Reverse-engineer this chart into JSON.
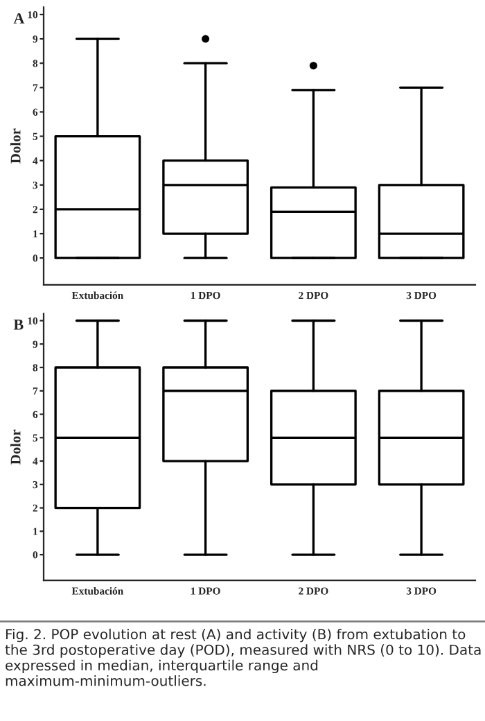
{
  "chart_data": [
    {
      "type": "box",
      "title": "A",
      "ylabel": "Dolor",
      "categories": [
        "Extubación",
        "1 DPO",
        "2 DPO",
        "3 DPO"
      ],
      "ylim": [
        -1.1,
        10.3
      ],
      "yticks": [
        0,
        1,
        2,
        3,
        4,
        5,
        6,
        7,
        8,
        9,
        10
      ],
      "grid": false,
      "boxes": [
        {
          "low": 0,
          "q1": 0,
          "median": 2,
          "q3": 5,
          "high": 9
        },
        {
          "low": 0,
          "q1": 1,
          "median": 3,
          "q3": 4,
          "high": 8,
          "outliers": [
            9
          ]
        },
        {
          "low": 0,
          "q1": 0,
          "median": 1.9,
          "q3": 2.9,
          "high": 6.9,
          "outliers": [
            7.9
          ]
        },
        {
          "low": 0,
          "q1": 0,
          "median": 1,
          "q3": 3,
          "high": 7
        }
      ]
    },
    {
      "type": "box",
      "title": "B",
      "ylabel": "Dolor",
      "categories": [
        "Extubación",
        "1 DPO",
        "2 DPO",
        "3 DPO"
      ],
      "ylim": [
        -1.1,
        10.3
      ],
      "yticks": [
        0,
        1,
        2,
        3,
        4,
        5,
        6,
        7,
        8,
        9,
        10
      ],
      "grid": false,
      "boxes": [
        {
          "low": 0,
          "q1": 2,
          "median": 5,
          "q3": 8,
          "high": 10
        },
        {
          "low": 0,
          "q1": 4,
          "median": 7,
          "q3": 8,
          "high": 10
        },
        {
          "low": 0,
          "q1": 3,
          "median": 5,
          "q3": 7,
          "high": 10
        },
        {
          "low": 0,
          "q1": 3,
          "median": 5,
          "q3": 7,
          "high": 10
        }
      ],
      "annotations": [
        "Fig. 2. POP evolution at rest (A) and activity (B) from extubation to the 3rd postoperative day (POD), measured with NRS (0 to 10). Data expressed in median, interquartile range and maximum-minimum-outliers."
      ]
    }
  ]
}
